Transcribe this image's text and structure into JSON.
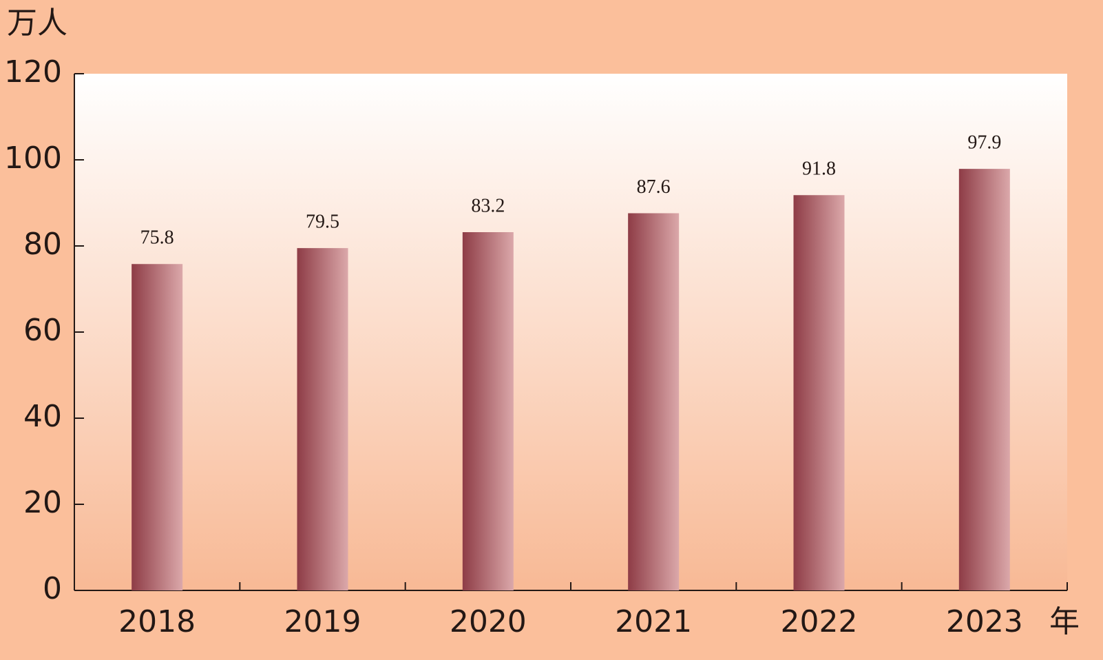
{
  "chart_data": {
    "type": "bar",
    "y_label": "万人",
    "x_label": "年",
    "categories": [
      "2018",
      "2019",
      "2020",
      "2021",
      "2022",
      "2023"
    ],
    "values": [
      75.8,
      79.5,
      83.2,
      87.6,
      91.8,
      97.9
    ],
    "color": "#8e3c46",
    "ylim": [
      0,
      120
    ],
    "yticks": [
      0,
      20,
      40,
      60,
      80,
      100,
      120
    ],
    "grid": false
  }
}
